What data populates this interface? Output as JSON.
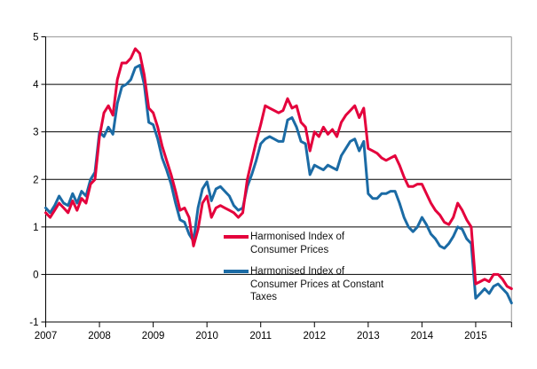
{
  "chart_data": {
    "type": "line",
    "title": "",
    "xlabel": "",
    "ylabel": "",
    "x_start": "2007-01",
    "x_end": "2015-09",
    "frequency": "monthly",
    "x_tick_labels": [
      "2007",
      "2008",
      "2009",
      "2010",
      "2011",
      "2012",
      "2013",
      "2014",
      "2015"
    ],
    "yticks": [
      5,
      4,
      3,
      2,
      1,
      0,
      -1
    ],
    "ylim": [
      -1,
      5
    ],
    "grid": "horizontal",
    "legend_position": "inside-bottom-center",
    "series": [
      {
        "name": "Harmonised Index of Consumer Prices",
        "legend_lines": [
          "Harmonised Index of",
          "Consumer Prices"
        ],
        "color": "#e4003c",
        "values": [
          1.3,
          1.2,
          1.35,
          1.5,
          1.4,
          1.3,
          1.55,
          1.35,
          1.6,
          1.5,
          1.9,
          2.0,
          2.9,
          3.4,
          3.55,
          3.35,
          4.1,
          4.45,
          4.45,
          4.55,
          4.75,
          4.65,
          4.2,
          3.5,
          3.4,
          3.1,
          2.7,
          2.4,
          2.1,
          1.75,
          1.35,
          1.4,
          1.2,
          0.6,
          0.95,
          1.5,
          1.65,
          1.2,
          1.4,
          1.45,
          1.4,
          1.35,
          1.3,
          1.2,
          1.3,
          2.0,
          2.4,
          2.8,
          3.15,
          3.55,
          3.5,
          3.45,
          3.4,
          3.45,
          3.7,
          3.5,
          3.55,
          3.2,
          3.1,
          2.6,
          3.0,
          2.9,
          3.1,
          2.95,
          3.05,
          2.9,
          3.2,
          3.35,
          3.45,
          3.55,
          3.3,
          3.5,
          2.65,
          2.6,
          2.55,
          2.45,
          2.4,
          2.45,
          2.5,
          2.3,
          2.05,
          1.85,
          1.85,
          1.9,
          1.9,
          1.7,
          1.5,
          1.35,
          1.25,
          1.1,
          1.05,
          1.2,
          1.5,
          1.35,
          1.15,
          1.0,
          -0.2,
          -0.15,
          -0.1,
          -0.15,
          0.0,
          0.0,
          -0.1,
          -0.25,
          -0.3
        ]
      },
      {
        "name": "Harmonised Index of Consumer Prices at Constant Taxes",
        "legend_lines": [
          "Harmonised Index of",
          "Consumer Prices at Constant",
          "Taxes"
        ],
        "color": "#1b6ba5",
        "values": [
          1.4,
          1.3,
          1.45,
          1.65,
          1.5,
          1.45,
          1.7,
          1.5,
          1.75,
          1.65,
          2.0,
          2.15,
          3.0,
          2.9,
          3.1,
          2.95,
          3.6,
          3.95,
          4.0,
          4.1,
          4.35,
          4.4,
          4.0,
          3.2,
          3.15,
          2.85,
          2.45,
          2.2,
          1.9,
          1.5,
          1.15,
          1.1,
          0.85,
          0.7,
          1.4,
          1.8,
          1.95,
          1.55,
          1.8,
          1.85,
          1.75,
          1.65,
          1.45,
          1.35,
          1.4,
          1.85,
          2.1,
          2.4,
          2.75,
          2.85,
          2.9,
          2.85,
          2.8,
          2.8,
          3.25,
          3.3,
          3.1,
          2.8,
          2.75,
          2.1,
          2.3,
          2.25,
          2.2,
          2.3,
          2.25,
          2.2,
          2.5,
          2.65,
          2.8,
          2.85,
          2.6,
          2.8,
          1.7,
          1.6,
          1.6,
          1.7,
          1.7,
          1.75,
          1.75,
          1.5,
          1.2,
          1.0,
          0.9,
          1.0,
          1.2,
          1.05,
          0.85,
          0.75,
          0.6,
          0.55,
          0.65,
          0.8,
          1.0,
          0.95,
          0.75,
          0.65,
          -0.5,
          -0.4,
          -0.3,
          -0.4,
          -0.25,
          -0.2,
          -0.3,
          -0.4,
          -0.6
        ]
      }
    ],
    "colors": {
      "gridline": "#000000",
      "plot_border": "#a6a6a6",
      "axis": "#000000",
      "tick_label": "#000000",
      "background": "#ffffff"
    }
  }
}
